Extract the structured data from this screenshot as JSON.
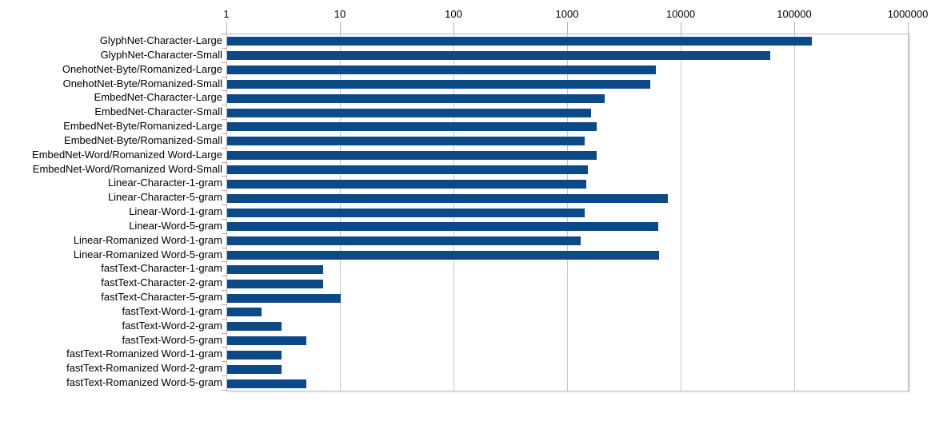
{
  "chart_data": {
    "type": "bar",
    "orientation": "horizontal",
    "title": "",
    "xlabel": "",
    "ylabel": "",
    "x_scale": "log",
    "xlim": [
      1,
      1000000
    ],
    "x_ticks": [
      1,
      10,
      100,
      1000,
      10000,
      100000,
      1000000
    ],
    "x_tick_labels": [
      "1",
      "10",
      "100",
      "1000",
      "10000",
      "100000",
      "1000000"
    ],
    "grid": true,
    "legend": "none",
    "categories": [
      "GlyphNet-Character-Large",
      "GlyphNet-Character-Small",
      "OnehotNet-Byte/Romanized-Large",
      "OnehotNet-Byte/Romanized-Small",
      "EmbedNet-Character-Large",
      "EmbedNet-Character-Small",
      "EmbedNet-Byte/Romanized-Large",
      "EmbedNet-Byte/Romanized-Small",
      "EmbedNet-Word/Romanized Word-Large",
      "EmbedNet-Word/Romanized Word-Small",
      "Linear-Character-1-gram",
      "Linear-Character-5-gram",
      "Linear-Word-1-gram",
      "Linear-Word-5-gram",
      "Linear-Romanized Word-1-gram",
      "Linear-Romanized Word-5-gram",
      "fastText-Character-1-gram",
      "fastText-Character-2-gram",
      "fastText-Character-5-gram",
      "fastText-Word-1-gram",
      "fastText-Word-2-gram",
      "fastText-Word-5-gram",
      "fastText-Romanized Word-1-gram",
      "fastText-Romanized Word-2-gram",
      "fastText-Romanized Word-5-gram"
    ],
    "values": [
      140000,
      60000,
      5900,
      5300,
      2100,
      1600,
      1800,
      1400,
      1800,
      1500,
      1450,
      7600,
      1400,
      6200,
      1300,
      6300,
      7,
      7,
      10,
      2,
      3,
      5,
      3,
      3,
      5
    ]
  },
  "colors": {
    "bar": "#0b4a87",
    "grid": "#c8c8c8",
    "border": "#b9b9b9",
    "axis_tick": "#b3b3b3",
    "category_tick": "#cfa49a",
    "text": "#000000",
    "background": "#ffffff"
  }
}
